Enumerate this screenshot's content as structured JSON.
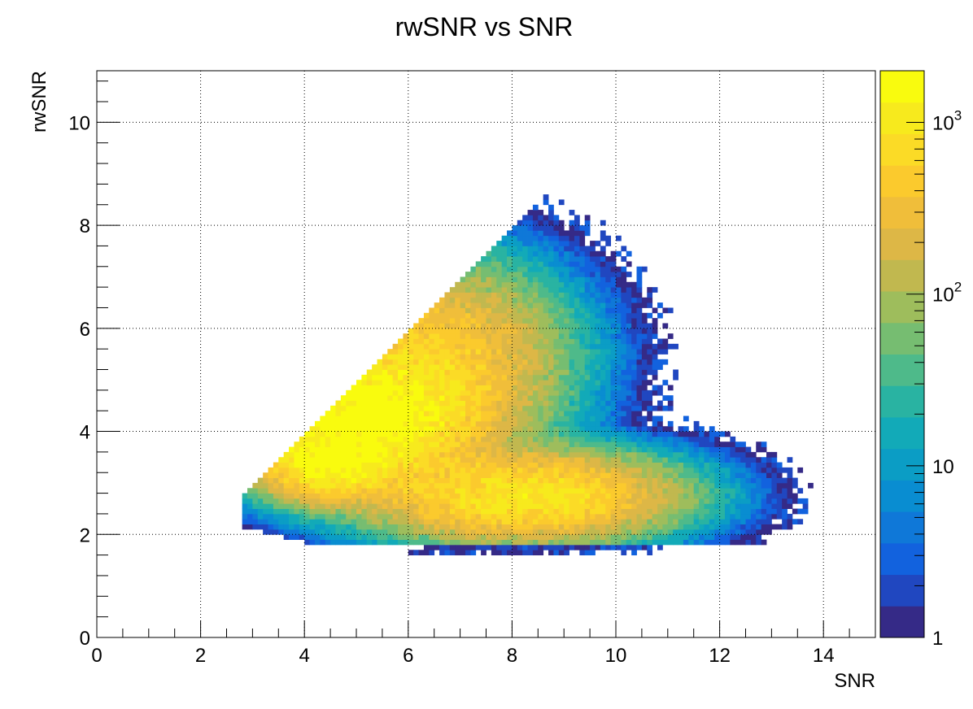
{
  "chart_data": {
    "type": "heatmap",
    "title": "rwSNR vs SNR",
    "xlabel": "SNR",
    "ylabel": "rwSNR",
    "xlim": [
      0,
      15
    ],
    "ylim": [
      0,
      11
    ],
    "x_ticks": [
      "0",
      "2",
      "4",
      "6",
      "8",
      "10",
      "12",
      "14"
    ],
    "y_ticks": [
      "0",
      "2",
      "4",
      "6",
      "8",
      "10"
    ],
    "grid": true,
    "colorbar": {
      "scale": "log",
      "range": [
        1,
        2000
      ],
      "tick_labels": [
        {
          "value": 1,
          "base": "1",
          "exp": ""
        },
        {
          "value": 10,
          "base": "10",
          "exp": ""
        },
        {
          "value": 100,
          "base": "10",
          "exp": "2"
        },
        {
          "value": 1000,
          "base": "10",
          "exp": "3"
        }
      ],
      "palette": [
        "#352a87",
        "#2047c0",
        "#1262de",
        "#0f78d8",
        "#098dd1",
        "#0b9dc5",
        "#12aab8",
        "#29b3a2",
        "#4eba8a",
        "#76bd71",
        "#9ebd5c",
        "#c1b84f",
        "#ddb746",
        "#f0be3a",
        "#fbca2d",
        "#fbdb26",
        "#f7ea1d",
        "#f9fb0e"
      ]
    },
    "bin_width": [
      0.1,
      0.1
    ],
    "density_model": {
      "components": [
        {
          "x": 5.2,
          "y": 4.3,
          "sx": 1.1,
          "sy": 0.65,
          "peak": 1900
        },
        {
          "x": 4.5,
          "y": 3.4,
          "sx": 0.65,
          "sy": 0.35,
          "peak": 1500
        },
        {
          "x": 8.2,
          "y": 2.75,
          "sx": 1.4,
          "sy": 0.42,
          "peak": 1000
        },
        {
          "x": 6.5,
          "y": 5.4,
          "sx": 1.2,
          "sy": 0.9,
          "peak": 500
        }
      ],
      "upper_edge_slope": 1.0,
      "upper_edge_intercept": -0.1,
      "lower_edge_y": 1.85,
      "max_x": 13.8
    }
  }
}
